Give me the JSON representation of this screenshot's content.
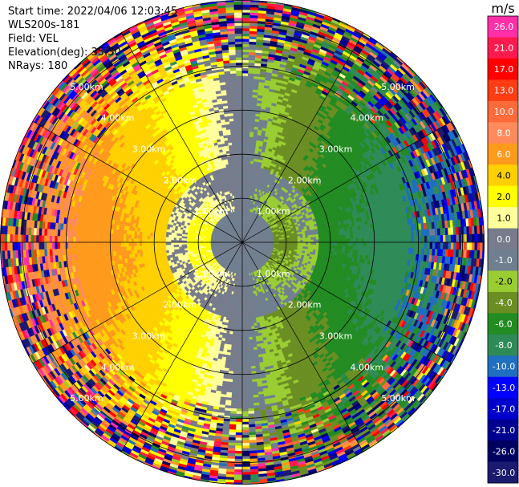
{
  "header": {
    "start_time": "Start time: 2022/04/06 12:03:45",
    "instrument": "WLS200s-181",
    "field": "Field: VEL",
    "elevation": "Elevation(deg): 35.30",
    "nrays": "NRays: 180"
  },
  "chart_data": {
    "type": "heatmap",
    "projection": "polar PPI",
    "field": "VEL",
    "units": "m/s",
    "range_rings_km": [
      1.0,
      2.0,
      3.0,
      4.0,
      5.0
    ],
    "ring_labels": [
      "1.00km",
      "2.00km",
      "3.00km",
      "4.00km",
      "5.00km"
    ],
    "max_range_km": 5.5,
    "n_rays": 180,
    "radial_lines_deg": [
      0,
      30,
      60,
      90,
      120,
      150,
      180,
      210,
      240,
      270,
      300,
      330
    ],
    "colorbar": {
      "label": "m/s",
      "range": [
        -30.0,
        30.0
      ],
      "ticks": [
        "26.0",
        "21.0",
        "17.0",
        "13.0",
        "10.0",
        "8.0",
        "6.0",
        "4.0",
        "2.0",
        "1.0",
        "0.0",
        "-1.0",
        "-2.0",
        "-4.0",
        "-6.0",
        "-8.0",
        "-10.0",
        "-13.0",
        "-17.0",
        "-21.0",
        "-26.0",
        "-30.0"
      ],
      "colors": [
        "#ff2fa8",
        "#ff1a4e",
        "#ff0000",
        "#ff3c14",
        "#ff6a3a",
        "#ff8a5c",
        "#ff9a1c",
        "#ffd000",
        "#ffff00",
        "#ffff9c",
        "#777b8b",
        "#6f7f8f",
        "#9acd32",
        "#6b8e23",
        "#228b22",
        "#2e8b57",
        "#1e6fbf",
        "#0000ff",
        "#0000cd",
        "#000090",
        "#000060",
        "#1a1a6e"
      ]
    },
    "velocity_pattern": {
      "description_free": "",
      "toward_side": "east",
      "away_side": "west",
      "near_zero_bands_km": [
        [
          0.4,
          0.7
        ],
        [
          1.3,
          1.7
        ]
      ]
    }
  }
}
